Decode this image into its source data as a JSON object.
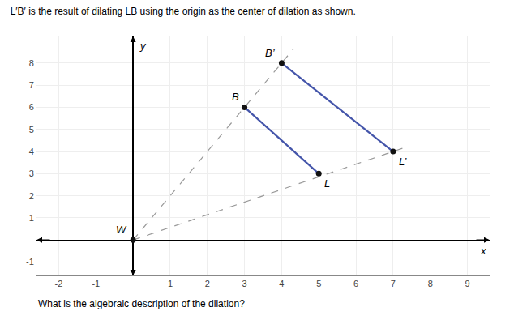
{
  "chart_data": {
    "type": "line",
    "title": "L′B′ is the result of dilating LB using the origin as the center of dilation as shown.",
    "xlabel": "x",
    "ylabel": "y",
    "xlim": [
      -2.6,
      9.6
    ],
    "ylim": [
      -1.6,
      9.2
    ],
    "xticks": [
      -2,
      -1,
      1,
      2,
      3,
      4,
      5,
      6,
      7,
      8,
      9
    ],
    "yticks": [
      -1,
      1,
      2,
      3,
      4,
      5,
      6,
      7,
      8
    ],
    "grid": true,
    "series": [
      {
        "type": "line",
        "line_style": "dashed",
        "color": "#999999",
        "x": [
          0,
          4.32
        ],
        "values": [
          0,
          8.64
        ]
      },
      {
        "type": "line",
        "line_style": "dashed",
        "color": "#999999",
        "x": [
          0,
          7.42
        ],
        "values": [
          0,
          4.24
        ]
      },
      {
        "type": "line",
        "line_style": "solid",
        "color": "#4455aa",
        "x": [
          3,
          5
        ],
        "values": [
          6,
          3
        ]
      },
      {
        "type": "line",
        "line_style": "solid",
        "color": "#4455aa",
        "x": [
          4,
          7
        ],
        "values": [
          8,
          4
        ]
      },
      {
        "type": "scatter",
        "marker": "circle",
        "color": "#111111",
        "x": [
          3,
          5,
          4,
          7,
          0
        ],
        "values": [
          6,
          3,
          8,
          4,
          0
        ]
      }
    ],
    "annotations": [
      {
        "text": "B",
        "x": 3,
        "y": 6
      },
      {
        "text": "L",
        "x": 5,
        "y": 3
      },
      {
        "text": "B’",
        "x": 4,
        "y": 8
      },
      {
        "text": "L’",
        "x": 7,
        "y": 4
      },
      {
        "text": "W",
        "x": 0,
        "y": 0
      },
      {
        "text": "What is the algebraic description of the dilation?"
      }
    ]
  }
}
